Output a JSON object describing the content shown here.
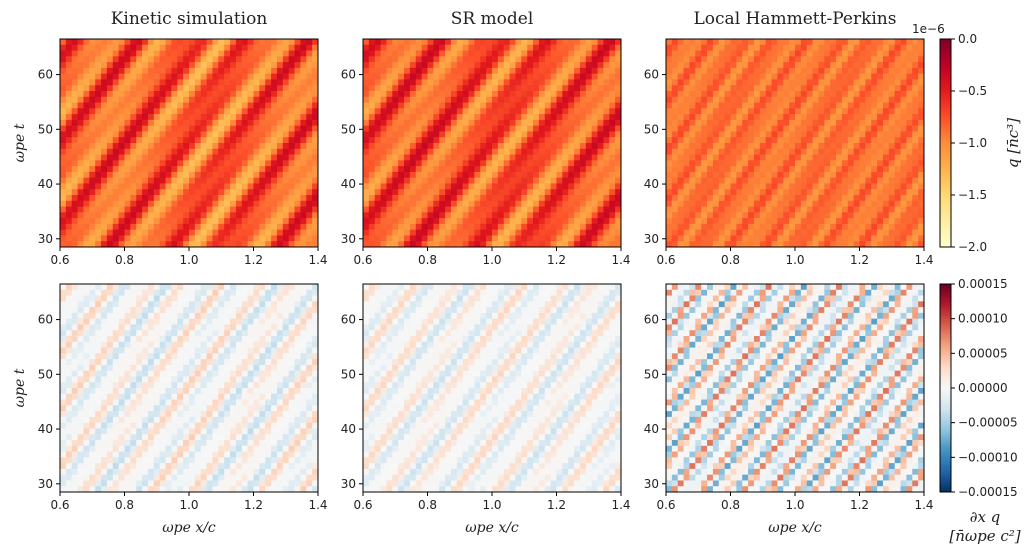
{
  "chart_data": [
    {
      "type": "heatmap",
      "title": "Kinetic simulation",
      "row": "top",
      "xlim": [
        0.6,
        1.4
      ],
      "ylim": [
        28.5,
        66.5
      ],
      "xticks": [
        "0.6",
        "0.8",
        "1.0",
        "1.2",
        "1.4"
      ],
      "yticks": [
        "30",
        "40",
        "50",
        "60"
      ],
      "ylabel": "ωpe t",
      "xlabel": "",
      "colormap": "YlOrRd",
      "pattern": {
        "bands": 9,
        "slope": -0.55,
        "amplitude": 0.9,
        "offset": 0.58
      }
    },
    {
      "type": "heatmap",
      "title": "SR model",
      "row": "top",
      "xlim": [
        0.6,
        1.4
      ],
      "ylim": [
        28.5,
        66.5
      ],
      "xticks": [
        "0.6",
        "0.8",
        "1.0",
        "1.2",
        "1.4"
      ],
      "yticks": [
        "30",
        "40",
        "50",
        "60"
      ],
      "ylabel": "",
      "xlabel": "",
      "colormap": "YlOrRd",
      "pattern": {
        "bands": 9,
        "slope": -0.55,
        "amplitude": 0.85,
        "offset": 0.6
      }
    },
    {
      "type": "heatmap",
      "title": "Local Hammett-Perkins",
      "row": "top",
      "xlim": [
        0.6,
        1.4
      ],
      "ylim": [
        28.5,
        66.5
      ],
      "xticks": [
        "0.6",
        "0.8",
        "1.0",
        "1.2",
        "1.4"
      ],
      "yticks": [
        "30",
        "40",
        "50",
        "60"
      ],
      "ylabel": "",
      "xlabel": "",
      "colormap": "YlOrRd",
      "pattern": {
        "bands": 16,
        "slope": -0.55,
        "amplitude": 0.35,
        "offset": 0.55
      }
    },
    {
      "type": "heatmap",
      "title": "",
      "row": "bottom",
      "xlim": [
        0.6,
        1.4
      ],
      "ylim": [
        28.5,
        66.5
      ],
      "xticks": [
        "0.6",
        "0.8",
        "1.0",
        "1.2",
        "1.4"
      ],
      "yticks": [
        "30",
        "40",
        "50",
        "60"
      ],
      "ylabel": "ωpe t",
      "xlabel": "ωpe x/c",
      "colormap": "RdBu_r",
      "pattern": {
        "bands": 14,
        "slope": -0.55,
        "amplitude": 0.25,
        "offset": 0.5
      }
    },
    {
      "type": "heatmap",
      "title": "",
      "row": "bottom",
      "xlim": [
        0.6,
        1.4
      ],
      "ylim": [
        28.5,
        66.5
      ],
      "xticks": [
        "0.6",
        "0.8",
        "1.0",
        "1.2",
        "1.4"
      ],
      "yticks": [
        "30",
        "40",
        "50",
        "60"
      ],
      "ylabel": "",
      "xlabel": "ωpe x/c",
      "colormap": "RdBu_r",
      "pattern": {
        "bands": 14,
        "slope": -0.55,
        "amplitude": 0.22,
        "offset": 0.5
      }
    },
    {
      "type": "heatmap",
      "title": "",
      "row": "bottom",
      "xlim": [
        0.6,
        1.4
      ],
      "ylim": [
        28.5,
        66.5
      ],
      "xticks": [
        "0.6",
        "0.8",
        "1.0",
        "1.2",
        "1.4"
      ],
      "yticks": [
        "30",
        "40",
        "50",
        "60"
      ],
      "ylabel": "",
      "xlabel": "ωpe x/c",
      "colormap": "RdBu_r",
      "pattern": {
        "bands": 22,
        "slope": -0.55,
        "amplitude": 0.55,
        "offset": 0.5
      }
    }
  ],
  "colorbars": {
    "top": {
      "label": "q [n̄c³]",
      "offset_label": "1e−6",
      "ticks": [
        "0.0",
        "−0.5",
        "−1.0",
        "−1.5",
        "−2.0"
      ],
      "range": [
        -2.0,
        0.0
      ],
      "colormap": "YlOrRd"
    },
    "bottom": {
      "label_line1": "∂x q",
      "label_line2": "[n̄ωpe c²]",
      "ticks": [
        "0.00015",
        "0.00010",
        "0.00005",
        "0.00000",
        "−0.00005",
        "−0.00010",
        "−0.00015"
      ],
      "range": [
        -0.00015,
        0.00015
      ],
      "colormap": "RdBu_r"
    }
  },
  "colors": {
    "ylorrd": [
      "#ffffcc",
      "#ffeda0",
      "#fed976",
      "#feb24c",
      "#fd8d3c",
      "#fc4e2a",
      "#e31a1c",
      "#bd0026",
      "#800026"
    ],
    "rdbu": [
      "#053061",
      "#2166ac",
      "#4393c3",
      "#92c5de",
      "#d1e5f0",
      "#f7f7f7",
      "#fddbc7",
      "#f4a582",
      "#d6604d",
      "#b2182b",
      "#67001f"
    ]
  }
}
